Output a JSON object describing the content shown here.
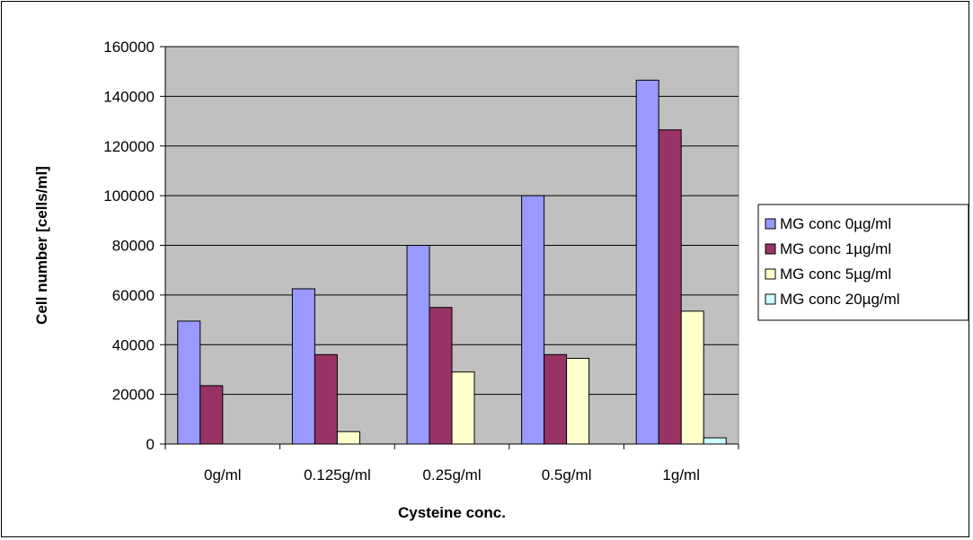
{
  "chart_data": {
    "type": "bar",
    "title": "",
    "xlabel": "Cysteine conc.",
    "ylabel": "Cell number [cells/ml]",
    "ylim": [
      0,
      160000
    ],
    "yticks": [
      "0",
      "20000",
      "40000",
      "60000",
      "80000",
      "100000",
      "120000",
      "140000",
      "160000"
    ],
    "grid": true,
    "legend_position": "right",
    "plot_background": "#c0c0c0",
    "categories": [
      "0g/ml",
      "0.125g/ml",
      "0.25g/ml",
      "0.5g/ml",
      "1g/ml"
    ],
    "series": [
      {
        "name": "MG conc 0µg/ml",
        "color": "#9999ff",
        "values": [
          49500,
          62500,
          80000,
          100000,
          146500
        ]
      },
      {
        "name": "MG conc 1µg/ml",
        "color": "#993366",
        "values": [
          23500,
          36000,
          55000,
          36000,
          126500
        ]
      },
      {
        "name": "MG conc 5µg/ml",
        "color": "#ffffcc",
        "values": [
          0,
          5000,
          29000,
          34500,
          53500
        ]
      },
      {
        "name": "MG conc 20µg/ml",
        "color": "#ccffff",
        "values": [
          0,
          0,
          0,
          0,
          2500
        ]
      }
    ]
  }
}
